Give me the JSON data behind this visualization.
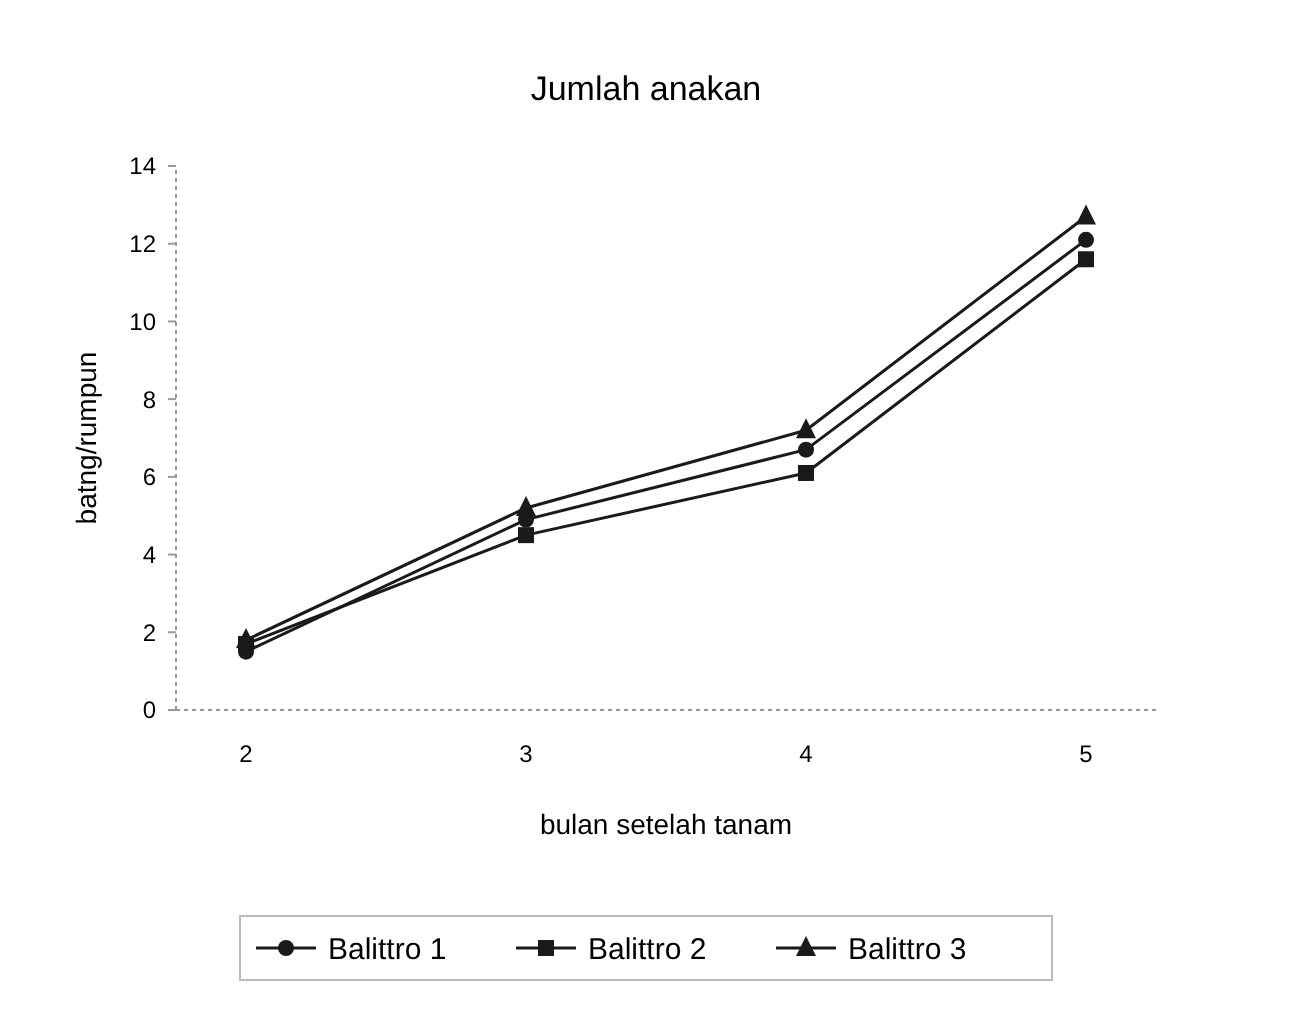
{
  "chart_data": {
    "type": "line",
    "title": "Jumlah anakan",
    "xlabel": "bulan setelah tanam",
    "ylabel": "batng/rumpun",
    "categories": [
      "2",
      "3",
      "4",
      "5"
    ],
    "series": [
      {
        "name": "Balittro 1",
        "color": "#1a1a1a",
        "marker": "circle",
        "values": [
          1.5,
          4.9,
          6.7,
          12.1
        ]
      },
      {
        "name": "Balittro 2",
        "color": "#1a1a1a",
        "marker": "square",
        "values": [
          1.7,
          4.5,
          6.1,
          11.6
        ]
      },
      {
        "name": "Balittro 3",
        "color": "#1a1a1a",
        "marker": "triangle",
        "values": [
          1.8,
          5.2,
          7.2,
          12.7
        ]
      }
    ],
    "ylim": [
      0,
      14
    ],
    "yticks": [
      0,
      2,
      4,
      6,
      8,
      10,
      12,
      14
    ],
    "grid": false,
    "legend": "bottom"
  }
}
